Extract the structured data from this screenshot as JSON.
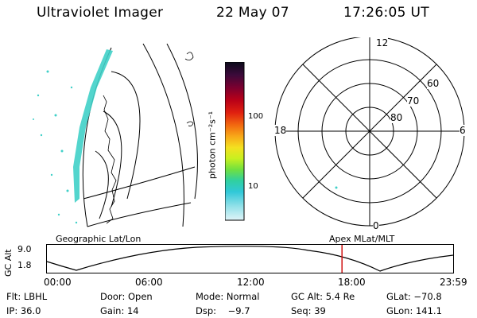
{
  "header": {
    "instrument": "Ultraviolet Imager",
    "date": "22 May 07",
    "time": "17:26:05 UT"
  },
  "colorbar": {
    "unit_label": "photon cm⁻²s⁻¹",
    "ticks": [
      "100",
      "10"
    ],
    "colors": [
      "#0b0b1a",
      "#3a0a3a",
      "#7a0030",
      "#b80018",
      "#e02010",
      "#f26a10",
      "#f8a818",
      "#f4e020",
      "#c8f020",
      "#70e040",
      "#30d0a0",
      "#30c8d8",
      "#90e0e8",
      "#e0f4f8"
    ]
  },
  "polar_plot": {
    "mlt_labels": {
      "top": "12",
      "left": "18",
      "right": "6",
      "bottom": "0"
    },
    "lat_labels": [
      "60",
      "70",
      "80"
    ]
  },
  "timeline": {
    "left_title": "Geographic Lat/Lon",
    "right_title": "Apex MLat/MLT",
    "axis_name": "GC Alt",
    "y_ticks": [
      "9.0",
      "1.8"
    ],
    "x_ticks": [
      "00:00",
      "06:00",
      "12:00",
      "18:00",
      "23:59"
    ],
    "marker_time": "17:26",
    "marker_color": "#d01010"
  },
  "footer": {
    "row1": [
      "Flt: LBHL",
      "Door: Open",
      "Mode: Normal",
      "GC Alt: 5.4 Re",
      "GLat: −70.8"
    ],
    "row2": [
      "IP: 36.0",
      "Gain: 14",
      "Dsp:    −9.7",
      "Seq: 39",
      "GLon: 141.1"
    ]
  }
}
